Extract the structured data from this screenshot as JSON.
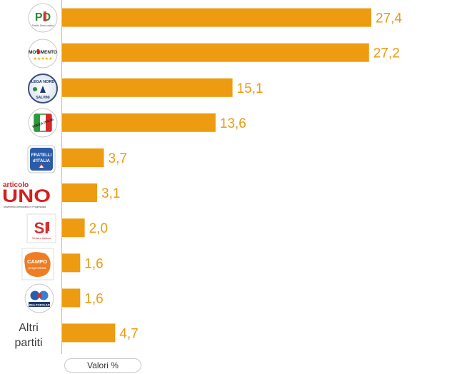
{
  "chart_data": {
    "type": "bar",
    "orientation": "horizontal",
    "categories": [
      "PD",
      "Movimento 5 Stelle",
      "Lega Nord",
      "Forza Italia",
      "Fratelli d'Italia",
      "Articolo Uno",
      "Sinistra Italiana",
      "Campo Progressista",
      "Area Popolare",
      "Altri partiti"
    ],
    "category_labels": [
      "",
      "",
      "",
      "",
      "",
      "",
      "",
      "",
      "",
      "Altri partiti"
    ],
    "values": [
      27.4,
      27.2,
      15.1,
      13.6,
      3.7,
      3.1,
      2.0,
      1.6,
      1.6,
      4.7
    ],
    "value_labels": [
      "27,4",
      "27,2",
      "15,1",
      "13,6",
      "3,7",
      "3,1",
      "2,0",
      "1,6",
      "1,6",
      "4,7"
    ],
    "xlim": [
      0,
      27.4
    ],
    "grid": false,
    "bar_color": "#ED9B10",
    "label_color": "#ED9B10",
    "category_logos": [
      "pd-logo",
      "m5s-logo",
      "lega-nord-logo",
      "forza-italia-logo",
      "fratelli-italia-logo",
      "articolo-uno-logo",
      "sinistra-italiana-logo",
      "campo-progressista-logo",
      "area-popolare-logo",
      null
    ]
  },
  "logos": {
    "pd": {
      "text": "PD",
      "small": "Partito Democratico"
    },
    "m5s": {
      "text": "MOVIMENTO",
      "stars": "★★★★★"
    },
    "lega": {
      "text": "LEGA NORD",
      "small": "SALVINI"
    },
    "fi": {
      "text": "FORZA ITALIA"
    },
    "fdi": {
      "line1": "FRATELLI",
      "line2": "d'ITALIA"
    },
    "uno": {
      "top": "articolo",
      "main": "UNO",
      "small": "Movimento Democratico e Progressista"
    },
    "si": {
      "main": "SI",
      "small": "Sinistra Italiana"
    },
    "campo": {
      "line1": "CAMPO",
      "line2": "progressista"
    },
    "ap": {
      "text": "AREA POPOLARE"
    }
  },
  "legend": {
    "label": "Valori %"
  }
}
